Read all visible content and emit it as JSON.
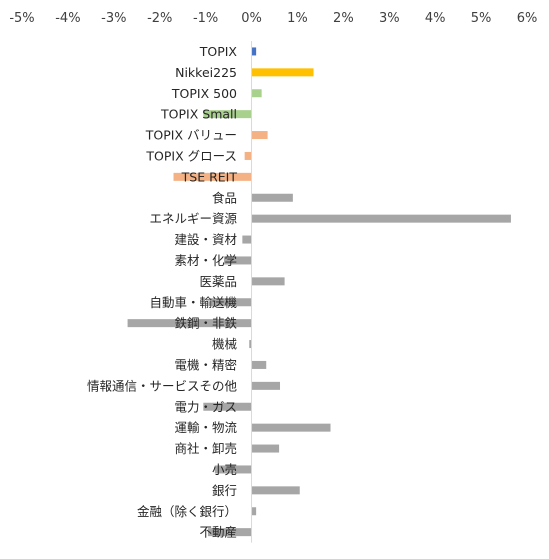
{
  "chart_data": {
    "type": "bar",
    "orientation": "horizontal",
    "title": "",
    "xlabel": "",
    "ylabel": "",
    "xlim": [
      -5,
      6
    ],
    "x_ticks": [
      "-5%",
      "-4%",
      "-3%",
      "-2%",
      "-1%",
      "0%",
      "1%",
      "2%",
      "3%",
      "4%",
      "5%",
      "6%"
    ],
    "tick_values": [
      -5,
      -4,
      -3,
      -2,
      -1,
      0,
      1,
      2,
      3,
      4,
      5,
      6
    ],
    "unit": "%",
    "grid": false,
    "legend": "none",
    "categories": [
      "TOPIX",
      "Nikkei225",
      "TOPIX 500",
      "TOPIX Small",
      "TOPIX バリュー",
      "TOPIX グロース",
      "TSE REIT",
      "食品",
      "エネルギー資源",
      "建設・資材",
      "素材・化学",
      "医薬品",
      "自動車・輸送機",
      "鉄鋼・非鉄",
      "機械",
      "電機・精密",
      "情報通信・サービスその他",
      "電力・ガス",
      "運輸・物流",
      "商社・卸売",
      "小売",
      "銀行",
      "金融（除く銀行）",
      "不動産"
    ],
    "values": [
      0.1,
      1.35,
      0.22,
      -1.05,
      0.35,
      -0.15,
      -1.7,
      0.9,
      5.65,
      -0.2,
      -0.6,
      0.72,
      -0.9,
      -2.7,
      -0.05,
      0.32,
      0.62,
      -1.05,
      1.72,
      0.6,
      -0.8,
      1.05,
      0.1,
      -0.95
    ],
    "colors": [
      "#4472c4",
      "#ffc000",
      "#a9d18e",
      "#a9d18e",
      "#f4b183",
      "#f4b183",
      "#f4b183",
      "#a6a6a6",
      "#a6a6a6",
      "#a6a6a6",
      "#a6a6a6",
      "#a6a6a6",
      "#a6a6a6",
      "#a6a6a6",
      "#a6a6a6",
      "#a6a6a6",
      "#a6a6a6",
      "#a6a6a6",
      "#a6a6a6",
      "#a6a6a6",
      "#a6a6a6",
      "#a6a6a6",
      "#a6a6a6",
      "#a6a6a6"
    ]
  }
}
